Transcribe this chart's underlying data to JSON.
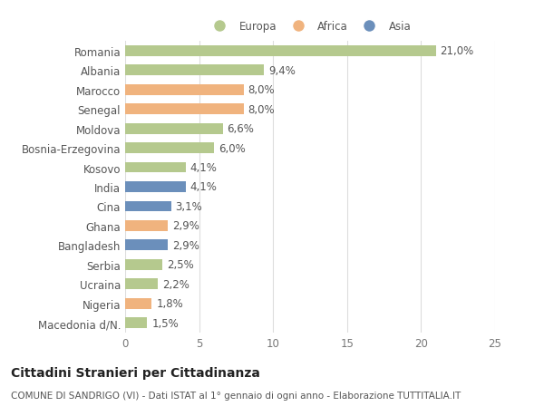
{
  "categories": [
    "Romania",
    "Albania",
    "Marocco",
    "Senegal",
    "Moldova",
    "Bosnia-Erzegovina",
    "Kosovo",
    "India",
    "Cina",
    "Ghana",
    "Bangladesh",
    "Serbia",
    "Ucraina",
    "Nigeria",
    "Macedonia d/N."
  ],
  "values": [
    21.0,
    9.4,
    8.0,
    8.0,
    6.6,
    6.0,
    4.1,
    4.1,
    3.1,
    2.9,
    2.9,
    2.5,
    2.2,
    1.8,
    1.5
  ],
  "labels": [
    "21,0%",
    "9,4%",
    "8,0%",
    "8,0%",
    "6,6%",
    "6,0%",
    "4,1%",
    "4,1%",
    "3,1%",
    "2,9%",
    "2,9%",
    "2,5%",
    "2,2%",
    "1,8%",
    "1,5%"
  ],
  "continent": [
    "Europa",
    "Europa",
    "Africa",
    "Africa",
    "Europa",
    "Europa",
    "Europa",
    "Asia",
    "Asia",
    "Africa",
    "Asia",
    "Europa",
    "Europa",
    "Africa",
    "Europa"
  ],
  "colors": {
    "Europa": "#b5c98e",
    "Africa": "#f0b37e",
    "Asia": "#6b8fbb"
  },
  "xlim": [
    0,
    25
  ],
  "xticks": [
    0,
    5,
    10,
    15,
    20,
    25
  ],
  "background_color": "#ffffff",
  "grid_color": "#dddddd",
  "title": "Cittadini Stranieri per Cittadinanza",
  "subtitle": "COMUNE DI SANDRIGO (VI) - Dati ISTAT al 1° gennaio di ogni anno - Elaborazione TUTTITALIA.IT",
  "bar_height": 0.55,
  "label_fontsize": 8.5,
  "tick_fontsize": 8.5,
  "title_fontsize": 10,
  "subtitle_fontsize": 7.5
}
